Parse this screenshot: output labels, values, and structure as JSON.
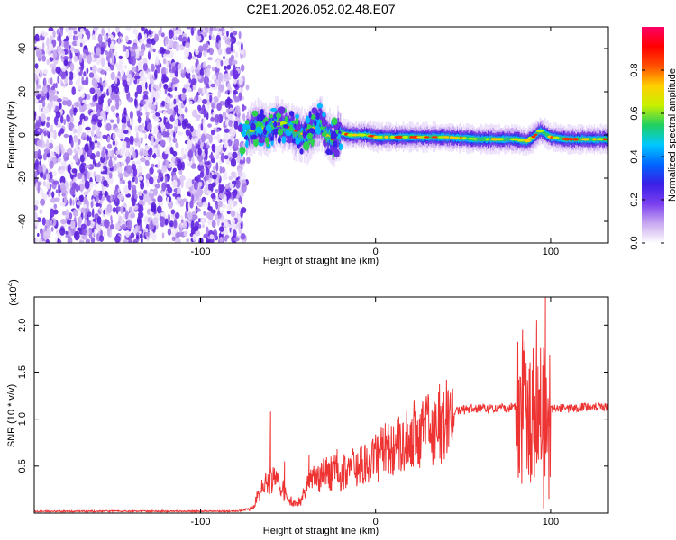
{
  "figure_title": "C2E1.2026.052.02.48.E07",
  "chart_data": [
    {
      "type": "heatmap",
      "name": "spectrogram",
      "xlabel": "Height of straight line (km)",
      "ylabel": "Frequency (Hz)",
      "xlim": [
        -195,
        133
      ],
      "ylim": [
        -50,
        50
      ],
      "xticks": [
        -100,
        0,
        100
      ],
      "xtick_labels": [
        "-100",
        "0",
        "100"
      ],
      "yticks": [
        -40,
        -20,
        0,
        20,
        40
      ],
      "ytick_labels": [
        "-40",
        "-20",
        "0",
        "20",
        "40"
      ],
      "noise_region_x": [
        -195,
        -75
      ],
      "signal_centerline": [
        [
          -75,
          0
        ],
        [
          -68,
          4
        ],
        [
          -62,
          2
        ],
        [
          -56,
          6
        ],
        [
          -50,
          3
        ],
        [
          -44,
          1
        ],
        [
          -40,
          -1
        ],
        [
          -36,
          3
        ],
        [
          -32,
          6
        ],
        [
          -28,
          0
        ],
        [
          -24,
          -2
        ],
        [
          -20,
          1
        ],
        [
          -15,
          0
        ],
        [
          -10,
          0
        ],
        [
          -5,
          0
        ],
        [
          0,
          -1
        ],
        [
          10,
          -1
        ],
        [
          20,
          -1
        ],
        [
          40,
          -1
        ],
        [
          60,
          -2
        ],
        [
          80,
          -2
        ],
        [
          86,
          -3
        ],
        [
          90,
          -1
        ],
        [
          94,
          2
        ],
        [
          100,
          -1
        ],
        [
          110,
          -2
        ],
        [
          120,
          -2
        ],
        [
          133,
          -2
        ]
      ],
      "colorbar": {
        "label": "Normalized spectral amplitude",
        "range": [
          0,
          1
        ],
        "ticks": [
          0.0,
          0.2,
          0.4,
          0.6,
          0.8
        ],
        "tick_labels": [
          "0.0",
          "0.2",
          "0.4",
          "0.6",
          "0.8"
        ],
        "colors": [
          "#ffffff",
          "#c8a8f0",
          "#7a3ff0",
          "#3a1fe6",
          "#0066ff",
          "#00c8ff",
          "#20d060",
          "#c8f000",
          "#ffd000",
          "#ff5000",
          "#ff0000",
          "#ff0066"
        ]
      }
    },
    {
      "type": "line",
      "name": "snr",
      "xlabel": "Height of straight line (km)",
      "ylabel": "SNR (10 * v/v)",
      "scale_label_base": "(x10",
      "scale_label_exp": "4",
      "scale_label_close": ")",
      "xlim": [
        -195,
        133
      ],
      "ylim": [
        0,
        2.3
      ],
      "xticks": [
        -100,
        0,
        100
      ],
      "xtick_labels": [
        "-100",
        "0",
        "100"
      ],
      "yticks": [
        0.5,
        1.0,
        1.5,
        2.0
      ],
      "ytick_labels": [
        "0.5",
        "1.0",
        "1.5",
        "2.0"
      ],
      "color": "#ee3333",
      "envelope": [
        [
          -195,
          0.02
        ],
        [
          -80,
          0.02
        ],
        [
          -75,
          0.03
        ],
        [
          -70,
          0.05
        ],
        [
          -66,
          0.25
        ],
        [
          -62,
          0.35
        ],
        [
          -58,
          0.35
        ],
        [
          -54,
          0.3
        ],
        [
          -50,
          0.15
        ],
        [
          -46,
          0.1
        ],
        [
          -42,
          0.15
        ],
        [
          -38,
          0.35
        ],
        [
          -34,
          0.4
        ],
        [
          -30,
          0.45
        ],
        [
          -26,
          0.45
        ],
        [
          -20,
          0.45
        ],
        [
          -14,
          0.5
        ],
        [
          -8,
          0.55
        ],
        [
          -2,
          0.6
        ],
        [
          5,
          0.68
        ],
        [
          15,
          0.8
        ],
        [
          25,
          0.9
        ],
        [
          35,
          0.98
        ],
        [
          45,
          1.08
        ],
        [
          55,
          1.12
        ],
        [
          65,
          1.12
        ],
        [
          75,
          1.13
        ],
        [
          82,
          1.15
        ],
        [
          88,
          1.15
        ],
        [
          95,
          1.12
        ],
        [
          100,
          1.12
        ],
        [
          110,
          1.12
        ],
        [
          120,
          1.13
        ],
        [
          133,
          1.13
        ]
      ],
      "spikes": [
        [
          -60,
          1.08
        ],
        [
          -52,
          0.55
        ],
        [
          -38,
          0.62
        ],
        [
          -22,
          0.68
        ],
        [
          -8,
          0.72
        ],
        [
          84,
          1.95
        ],
        [
          86,
          1.6
        ],
        [
          92,
          2.05
        ],
        [
          96,
          0.05
        ],
        [
          97,
          2.3
        ],
        [
          99,
          0.15
        ]
      ]
    }
  ]
}
